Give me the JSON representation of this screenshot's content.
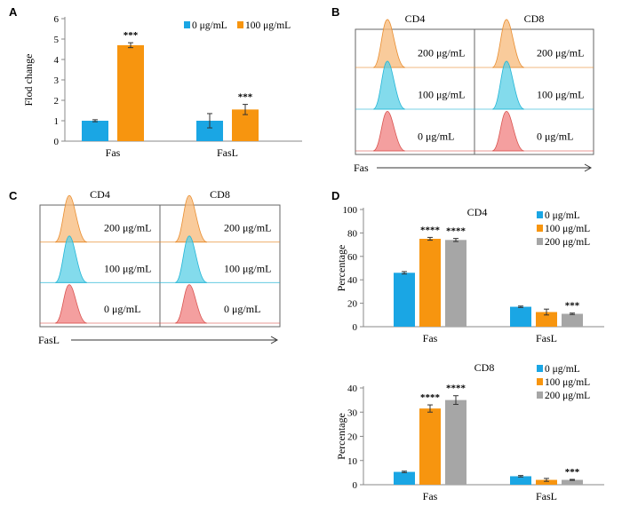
{
  "colors": {
    "c0": "#1aa6e4",
    "c100": "#f7950f",
    "c200": "#a6a6a6",
    "hist0": "#f07f7f",
    "hist100": "#59cfe6",
    "hist200": "#f7b97a"
  },
  "chart_data": [
    {
      "panel": "A",
      "type": "bar",
      "categories": [
        "Fas",
        "FasL"
      ],
      "ylabel": "Flod change",
      "ylim": [
        0,
        6
      ],
      "yticks": [
        0,
        1,
        2,
        3,
        4,
        5,
        6
      ],
      "series": [
        {
          "name": "0 μg/mL",
          "values": [
            1.0,
            1.0
          ],
          "errors": [
            0.05,
            0.35
          ]
        },
        {
          "name": "100 μg/mL",
          "values": [
            4.7,
            1.55
          ],
          "errors": [
            0.12,
            0.25
          ]
        }
      ],
      "significance": [
        {
          "category": 0,
          "series": 1,
          "text": "***"
        },
        {
          "category": 1,
          "series": 1,
          "text": "***"
        }
      ]
    },
    {
      "panel": "D",
      "type": "bar",
      "title": "CD4",
      "categories": [
        "Fas",
        "FasL"
      ],
      "ylabel": "Percentage",
      "ylim": [
        0,
        100
      ],
      "yticks": [
        0,
        20,
        40,
        60,
        80,
        100
      ],
      "series": [
        {
          "name": "0 μg/mL",
          "values": [
            46,
            17
          ],
          "errors": [
            1.0,
            0.6
          ]
        },
        {
          "name": "100 μg/mL",
          "values": [
            75,
            12.5
          ],
          "errors": [
            1.2,
            2.5
          ]
        },
        {
          "name": "200 μg/mL",
          "values": [
            74,
            11
          ],
          "errors": [
            1.3,
            0.6
          ]
        }
      ],
      "significance": [
        {
          "category": 0,
          "series": 1,
          "text": "****"
        },
        {
          "category": 0,
          "series": 2,
          "text": "****"
        },
        {
          "category": 1,
          "series": 2,
          "text": "***"
        }
      ]
    },
    {
      "panel": "",
      "type": "bar",
      "title": "CD8",
      "categories": [
        "Fas",
        "FasL"
      ],
      "ylabel": "Percentage",
      "ylim": [
        0,
        40
      ],
      "yticks": [
        0,
        10,
        20,
        30,
        40
      ],
      "series": [
        {
          "name": "0 μg/mL",
          "values": [
            5.3,
            3.5
          ],
          "errors": [
            0.3,
            0.3
          ]
        },
        {
          "name": "100 μg/mL",
          "values": [
            31.5,
            2
          ],
          "errors": [
            1.5,
            0.6
          ]
        },
        {
          "name": "200 μg/mL",
          "values": [
            35,
            2
          ],
          "errors": [
            1.8,
            0.2
          ]
        }
      ],
      "significance": [
        {
          "category": 0,
          "series": 1,
          "text": "****"
        },
        {
          "category": 0,
          "series": 2,
          "text": "****"
        },
        {
          "category": 1,
          "series": 2,
          "text": "***"
        }
      ]
    }
  ],
  "histograms": [
    {
      "panel": "B",
      "columns": [
        "CD4",
        "CD8"
      ],
      "rows": [
        "200 μg/mL",
        "100 μg/mL",
        "0 μg/mL"
      ],
      "axis_label": "Fas"
    },
    {
      "panel": "C",
      "columns": [
        "CD4",
        "CD8"
      ],
      "rows": [
        "200 μg/mL",
        "100 μg/mL",
        "0 μg/mL"
      ],
      "axis_label": "FasL"
    }
  ]
}
